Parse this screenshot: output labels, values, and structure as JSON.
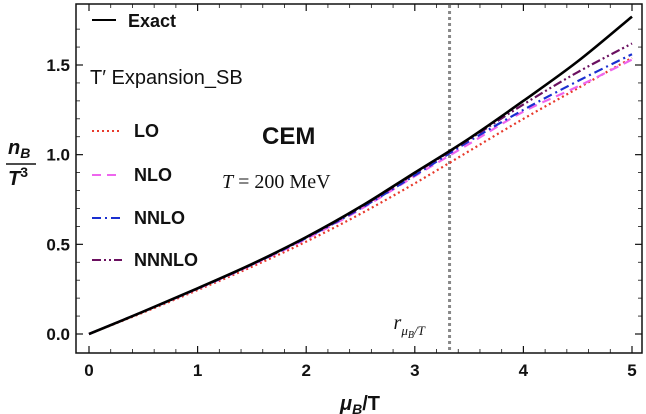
{
  "chart_data": {
    "type": "line",
    "xlabel_main": "μ",
    "xlabel_sub": "B",
    "xlabel_rest": "/T",
    "ylabel_num_main": "n",
    "ylabel_num_sub": "B",
    "ylabel_den_main": "T",
    "ylabel_den_sup": "3",
    "xlim": [
      0,
      5
    ],
    "ylim": [
      -0.1,
      1.8
    ],
    "x_ticks": [
      0,
      1,
      2,
      3,
      4,
      5
    ],
    "x_tick_labels": [
      "0",
      "1",
      "2",
      "3",
      "4",
      "5"
    ],
    "y_ticks": [
      0.0,
      0.5,
      1.0,
      1.5
    ],
    "y_tick_labels": [
      "0.0",
      "0.5",
      "1.0",
      "1.5"
    ],
    "x": [
      0,
      0.5,
      1,
      1.5,
      2,
      2.5,
      3,
      3.5,
      4,
      4.5,
      5
    ],
    "series": [
      {
        "name": "Exact",
        "color": "#000000",
        "dash": "",
        "values": [
          0,
          0.125,
          0.255,
          0.39,
          0.54,
          0.71,
          0.9,
          1.09,
          1.3,
          1.52,
          1.77
        ]
      },
      {
        "name": "LO",
        "color": "#e8392b",
        "dash": "2 3",
        "values": [
          0,
          0.12,
          0.245,
          0.375,
          0.515,
          0.67,
          0.84,
          1.02,
          1.2,
          1.37,
          1.54
        ]
      },
      {
        "name": "NLO",
        "color": "#ee66ee",
        "dash": "9 6",
        "values": [
          0,
          0.125,
          0.252,
          0.385,
          0.53,
          0.695,
          0.88,
          1.06,
          1.24,
          1.38,
          1.53
        ]
      },
      {
        "name": "NNLO",
        "color": "#1a2fd0",
        "dash": "9 4 2 4",
        "values": [
          0,
          0.125,
          0.253,
          0.387,
          0.535,
          0.7,
          0.885,
          1.075,
          1.25,
          1.41,
          1.56
        ]
      },
      {
        "name": "NNNLO",
        "color": "#6b1060",
        "dash": "9 3 2 3 2 3",
        "values": [
          0,
          0.125,
          0.254,
          0.389,
          0.538,
          0.706,
          0.895,
          1.085,
          1.28,
          1.46,
          1.62
        ]
      }
    ],
    "vline": {
      "x": 3.32,
      "label_main": "r",
      "label_sub_main": "μ",
      "label_sub_sub": "B",
      "label_sub_rest": "/T",
      "color": "#888888"
    },
    "annotations": {
      "expansion": "T′ Expansion_SB",
      "model": "CEM",
      "temperature_var": "T",
      "temperature_rest": " = 200 MeV"
    },
    "legend_position": "left",
    "grid": false
  }
}
